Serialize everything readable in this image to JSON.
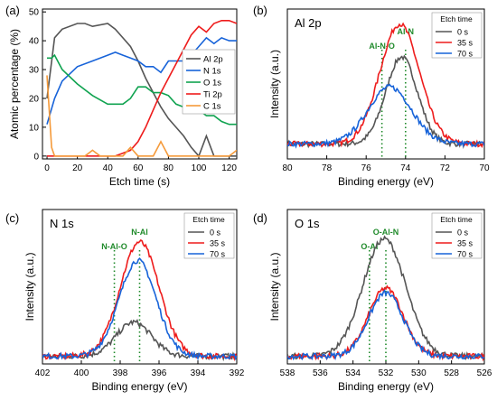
{
  "figure": {
    "panels": [
      "(a)",
      "(b)",
      "(c)",
      "(d)"
    ],
    "colors": {
      "gray": "#555555",
      "red": "#ee1c1c",
      "blue": "#1763d9",
      "green": "#10a350",
      "orange": "#f59a3a",
      "annotation": "#1f8a2a"
    }
  },
  "chart_data": [
    {
      "panel": "(a)",
      "type": "line",
      "title": "",
      "xlabel": "Etch time (s)",
      "ylabel": "Atomic percentage (%)",
      "xlim": [
        -3,
        125
      ],
      "ylim": [
        -1,
        51
      ],
      "xticks": [
        0,
        20,
        40,
        60,
        80,
        100,
        120
      ],
      "yticks": [
        0,
        10,
        20,
        30,
        40,
        50
      ],
      "legend_position": "center-right",
      "series": [
        {
          "name": "Al 2p",
          "color": "#555555",
          "x": [
            0,
            5,
            10,
            20,
            25,
            30,
            40,
            45,
            50,
            55,
            60,
            65,
            70,
            75,
            80,
            85,
            90,
            95,
            100,
            105,
            110,
            115,
            120,
            125
          ],
          "y": [
            20,
            41,
            44,
            46,
            46,
            45,
            46,
            44,
            41,
            38,
            33,
            27,
            22,
            17,
            13,
            10,
            7,
            3,
            0,
            7,
            0,
            0,
            0,
            0
          ]
        },
        {
          "name": "N 1s",
          "color": "#1763d9",
          "x": [
            0,
            5,
            10,
            20,
            30,
            40,
            45,
            50,
            55,
            60,
            65,
            70,
            75,
            80,
            85,
            90,
            95,
            100,
            105,
            110,
            115,
            120,
            125
          ],
          "y": [
            11,
            20,
            26,
            31,
            33,
            35,
            36,
            35,
            34,
            33,
            31,
            31,
            29,
            33,
            33,
            33,
            35,
            38,
            41,
            39,
            41,
            40,
            40
          ]
        },
        {
          "name": "O 1s",
          "color": "#10a350",
          "x": [
            0,
            3,
            5,
            10,
            20,
            30,
            40,
            45,
            50,
            55,
            60,
            65,
            70,
            75,
            80,
            85,
            90,
            95,
            100,
            105,
            110,
            115,
            120,
            125
          ],
          "y": [
            34,
            34,
            35,
            30,
            25,
            21,
            18,
            18,
            18,
            20,
            24,
            24,
            22,
            22,
            21,
            18,
            17,
            16,
            16,
            14,
            14,
            12,
            11,
            11
          ]
        },
        {
          "name": "Ti 2p",
          "color": "#ee1c1c",
          "x": [
            0,
            5,
            10,
            20,
            30,
            40,
            45,
            50,
            55,
            60,
            65,
            70,
            75,
            80,
            85,
            90,
            95,
            100,
            105,
            110,
            115,
            120,
            125
          ],
          "y": [
            0,
            0,
            0,
            0,
            0,
            0,
            0,
            1,
            2,
            5,
            10,
            16,
            22,
            27,
            32,
            37,
            42,
            45,
            43,
            46,
            47,
            47,
            46
          ]
        },
        {
          "name": "C 1s",
          "color": "#f59a3a",
          "x": [
            0,
            3,
            5,
            10,
            15,
            20,
            25,
            30,
            35,
            40,
            45,
            50,
            55,
            60,
            65,
            70,
            75,
            80,
            85,
            90,
            95,
            100,
            105,
            110,
            115,
            120,
            125
          ],
          "y": [
            28,
            3,
            0,
            0,
            0,
            0,
            0,
            2,
            0,
            0,
            0,
            0,
            3,
            0,
            0,
            0,
            5,
            0,
            0,
            0,
            0,
            0,
            0,
            0,
            0,
            0,
            2
          ]
        }
      ]
    },
    {
      "panel": "(b)",
      "type": "line",
      "title": "Al 2p",
      "xlabel": "Binding energy (eV)",
      "ylabel": "Intensity (a.u.)",
      "xlim": [
        80,
        70
      ],
      "ylim": [
        0,
        1
      ],
      "xticks": [
        80,
        78,
        76,
        74,
        72,
        70
      ],
      "legend_title": "Etch time",
      "legend_position": "top-right",
      "annotations": [
        {
          "text": "Al-N-O",
          "x": 75.2,
          "color": "#1f8a2a"
        },
        {
          "text": "Al-N",
          "x": 74.0,
          "color": "#1f8a2a"
        }
      ],
      "series": [
        {
          "name": "0 s",
          "color": "#555555",
          "center": 74.2,
          "width": 0.8,
          "height": 0.58,
          "base": 0.1
        },
        {
          "name": "35 s",
          "color": "#ee1c1c",
          "center": 74.3,
          "width": 1.0,
          "height": 0.8,
          "base": 0.1
        },
        {
          "name": "70 s",
          "color": "#1763d9",
          "center": 74.8,
          "width": 1.1,
          "height": 0.38,
          "base": 0.1
        }
      ]
    },
    {
      "panel": "(c)",
      "type": "line",
      "title": "N 1s",
      "xlabel": "Binding energy (eV)",
      "ylabel": "Intensity (a.u.)",
      "xlim": [
        402,
        392
      ],
      "ylim": [
        0,
        1
      ],
      "xticks": [
        402,
        400,
        398,
        396,
        394,
        392
      ],
      "legend_title": "Etch time",
      "legend_position": "top-right",
      "annotations": [
        {
          "text": "N-Al-O",
          "x": 398.3,
          "color": "#1f8a2a"
        },
        {
          "text": "N-Al",
          "x": 397.0,
          "color": "#1f8a2a"
        }
      ],
      "series": [
        {
          "name": "0 s",
          "color": "#555555",
          "center": 397.3,
          "width": 0.9,
          "height": 0.22,
          "base": 0.05
        },
        {
          "name": "35 s",
          "color": "#ee1c1c",
          "center": 397.0,
          "width": 1.0,
          "height": 0.74,
          "base": 0.05
        },
        {
          "name": "70 s",
          "color": "#1763d9",
          "center": 397.1,
          "width": 0.95,
          "height": 0.62,
          "base": 0.05
        }
      ]
    },
    {
      "panel": "(d)",
      "type": "line",
      "title": "O 1s",
      "xlabel": "Binding energy (eV)",
      "ylabel": "Intensity (a.u.)",
      "xlim": [
        538,
        526
      ],
      "ylim": [
        0,
        1
      ],
      "xticks": [
        538,
        536,
        534,
        532,
        530,
        528,
        526
      ],
      "legend_title": "Etch time",
      "legend_position": "top-right",
      "annotations": [
        {
          "text": "O-Al",
          "x": 533.0,
          "color": "#1f8a2a"
        },
        {
          "text": "O-Al-N",
          "x": 532.0,
          "color": "#1f8a2a"
        }
      ],
      "series": [
        {
          "name": "0 s",
          "color": "#555555",
          "center": 532.1,
          "width": 1.3,
          "height": 0.76,
          "base": 0.05
        },
        {
          "name": "35 s",
          "color": "#ee1c1c",
          "center": 532.0,
          "width": 1.05,
          "height": 0.44,
          "base": 0.05
        },
        {
          "name": "70 s",
          "color": "#1763d9",
          "center": 532.0,
          "width": 1.05,
          "height": 0.41,
          "base": 0.05
        }
      ]
    }
  ]
}
